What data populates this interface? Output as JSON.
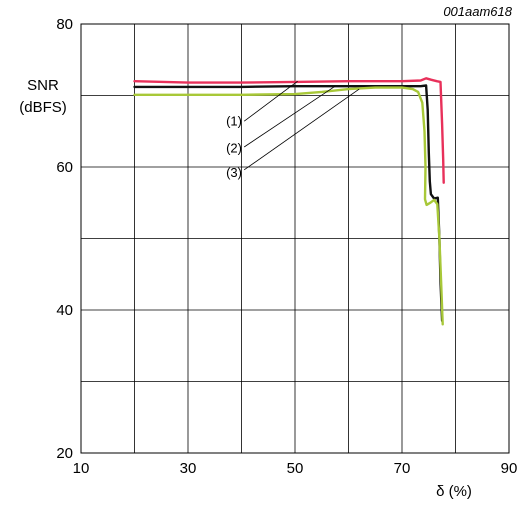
{
  "figure_id": "001aam618",
  "chart_data": {
    "type": "line",
    "title": "",
    "xlabel": "δ (%)",
    "ylabel_line1": "SNR",
    "ylabel_line2": "(dBFS)",
    "xlim": [
      10,
      90
    ],
    "ylim": [
      20,
      80
    ],
    "x_ticks": [
      10,
      30,
      50,
      70,
      90
    ],
    "y_ticks": [
      20,
      40,
      60,
      80
    ],
    "x_grid": [
      10,
      20,
      30,
      40,
      50,
      60,
      70,
      80,
      90
    ],
    "y_grid": [
      20,
      30,
      40,
      50,
      60,
      70,
      80
    ],
    "grid": true,
    "series": [
      {
        "name": "(1)",
        "color": "#e8305a",
        "points": [
          [
            20,
            72.0
          ],
          [
            30,
            71.8
          ],
          [
            40,
            71.8
          ],
          [
            50,
            71.9
          ],
          [
            60,
            72.0
          ],
          [
            70,
            72.0
          ],
          [
            73.5,
            72.1
          ],
          [
            74.5,
            72.4
          ],
          [
            75.5,
            72.2
          ],
          [
            76.5,
            72.0
          ],
          [
            77.2,
            71.9
          ],
          [
            77.5,
            66
          ],
          [
            77.7,
            61
          ],
          [
            77.8,
            57.8
          ]
        ]
      },
      {
        "name": "(2)",
        "color": "#111111",
        "points": [
          [
            20,
            71.2
          ],
          [
            30,
            71.2
          ],
          [
            40,
            71.2
          ],
          [
            50,
            71.3
          ],
          [
            60,
            71.3
          ],
          [
            70,
            71.3
          ],
          [
            73.5,
            71.3
          ],
          [
            74.5,
            71.4
          ],
          [
            74.8,
            68
          ],
          [
            75.0,
            62
          ],
          [
            75.2,
            58
          ],
          [
            75.4,
            56.2
          ],
          [
            76.0,
            55.6
          ],
          [
            76.7,
            55.7
          ],
          [
            77.0,
            50
          ],
          [
            77.2,
            44
          ],
          [
            77.5,
            38.5
          ]
        ]
      },
      {
        "name": "(3)",
        "color": "#a8c838",
        "points": [
          [
            20,
            70.1
          ],
          [
            30,
            70.1
          ],
          [
            40,
            70.1
          ],
          [
            50,
            70.2
          ],
          [
            55,
            70.5
          ],
          [
            60,
            70.9
          ],
          [
            65,
            71.1
          ],
          [
            70,
            71.1
          ],
          [
            72,
            70.9
          ],
          [
            73,
            70.5
          ],
          [
            73.8,
            69
          ],
          [
            74.2,
            65
          ],
          [
            74.4,
            60
          ],
          [
            74.3,
            55.5
          ],
          [
            74.6,
            54.7
          ],
          [
            75.3,
            55.0
          ],
          [
            76.0,
            55.4
          ],
          [
            76.6,
            54.8
          ],
          [
            77.0,
            50
          ],
          [
            77.3,
            44
          ],
          [
            77.6,
            38.0
          ]
        ]
      }
    ],
    "annotations": [
      {
        "label": "(1)",
        "color": "#e8305a",
        "line": [
          [
            40.5,
            66.4
          ],
          [
            50.5,
            72.0
          ]
        ],
        "text_pos": [
          38.6,
          65.8
        ]
      },
      {
        "label": "(2)",
        "color": "#111111",
        "line": [
          [
            40.5,
            62.8
          ],
          [
            57.5,
            71.3
          ]
        ],
        "text_pos": [
          38.6,
          62.0
        ]
      },
      {
        "label": "(3)",
        "color": "#a8c838",
        "line": [
          [
            40.5,
            59.6
          ],
          [
            62.0,
            70.9
          ]
        ],
        "text_pos": [
          38.6,
          58.6
        ]
      }
    ]
  }
}
